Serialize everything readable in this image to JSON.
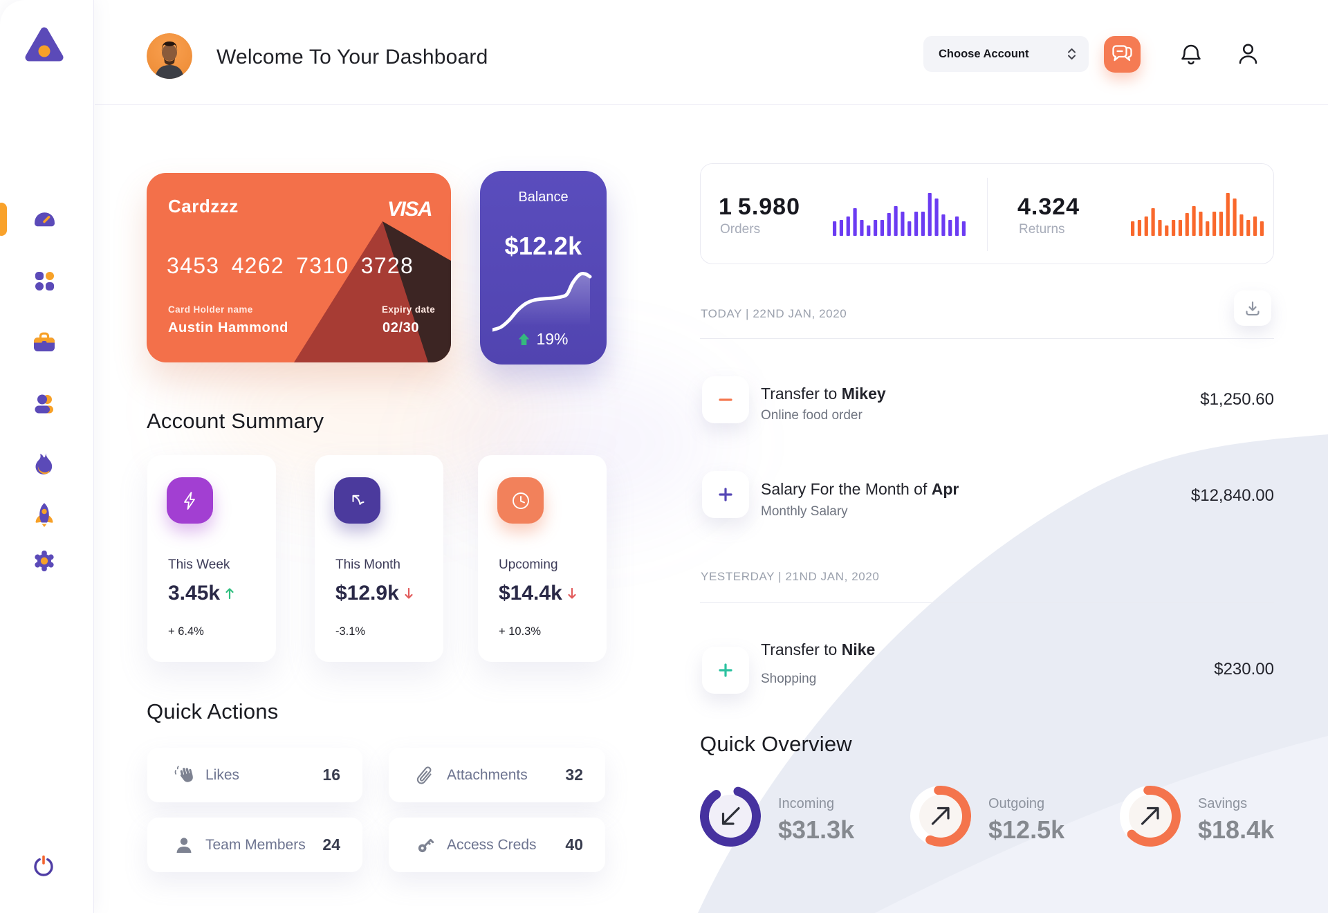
{
  "header": {
    "title": "Welcome To Your Dashboard",
    "account_select": {
      "value": "Choose Account"
    }
  },
  "sidebar": {
    "items": [
      {
        "id": "dashboard",
        "active": true
      },
      {
        "id": "apps",
        "active": false
      },
      {
        "id": "briefcase",
        "active": false
      },
      {
        "id": "profile",
        "active": false
      },
      {
        "id": "activity",
        "active": false
      },
      {
        "id": "launch",
        "active": false
      },
      {
        "id": "settings",
        "active": false
      }
    ]
  },
  "credit_card": {
    "name": "Cardzzz",
    "network": "VISA",
    "number": "3453 4262 7310 3728",
    "holder_label": "Card Holder name",
    "holder_name": "Austin Hammond",
    "expiry_label": "Expiry date",
    "expiry": "02/30"
  },
  "balance_card": {
    "label": "Balance",
    "amount": "$12.2k",
    "change": "19%"
  },
  "summary": {
    "title": "Account Summary",
    "cards": [
      {
        "label": "This Week",
        "value": "3.45k",
        "delta": "+ 6.4%",
        "trend": "up",
        "icon": "lightning-icon",
        "tile_color": "#a23fd2"
      },
      {
        "label": "This Month",
        "value": "$12.9k",
        "delta": "-3.1%",
        "trend": "down",
        "icon": "arrow-up-left-icon",
        "tile_color": "#4b3a9d"
      },
      {
        "label": "Upcoming",
        "value": "$14.4k",
        "delta": "+ 10.3%",
        "trend": "down",
        "icon": "clock-icon",
        "tile_color": "#f2815b"
      }
    ]
  },
  "quick_actions": {
    "title": "Quick Actions",
    "items": [
      {
        "label": "Likes",
        "count": "16",
        "icon": "clap-icon"
      },
      {
        "label": "Attachments",
        "count": "32",
        "icon": "paperclip-icon"
      },
      {
        "label": "Team Members",
        "count": "24",
        "icon": "member-icon"
      },
      {
        "label": "Access Creds",
        "count": "40",
        "icon": "key-icon"
      }
    ]
  },
  "stats": {
    "orders": {
      "value": "15.980",
      "label": "Orders"
    },
    "returns": {
      "value": "4.324",
      "label": "Returns"
    }
  },
  "transactions": {
    "groups": [
      {
        "date": "TODAY | 22ND JAN, 2020",
        "items": [
          {
            "title_prefix": "Transfer to ",
            "title_bold": "Mikey",
            "subtitle": "Online food order",
            "amount": "$1,250.60",
            "sign": "minus",
            "sign_color": "#f4774e"
          },
          {
            "title_prefix": "Salary For the Month of ",
            "title_bold": "Apr",
            "subtitle": "Monthly Salary",
            "amount": "$12,840.00",
            "sign": "plus",
            "sign_color": "#5546b5"
          }
        ]
      },
      {
        "date": "YESTERDAY | 21ND JAN, 2020",
        "items": [
          {
            "title_prefix": "Transfer to ",
            "title_bold": "Nike",
            "subtitle": "Shopping",
            "amount": "$230.00",
            "sign": "plus",
            "sign_color": "#2cc2a0"
          }
        ]
      }
    ]
  },
  "overview": {
    "title": "Quick Overview",
    "items": [
      {
        "label": "Incoming",
        "value": "$31.3k",
        "percent": 86,
        "start_deg": 287,
        "color": "#46329f",
        "inner": "#f1eff8",
        "direction": "down-left"
      },
      {
        "label": "Outgoing",
        "value": "$12.5k",
        "percent": 58,
        "start_deg": 265,
        "color": "#f4744c",
        "inner": "#f9f5f2",
        "direction": "up-right"
      },
      {
        "label": "Savings",
        "value": "$18.4k",
        "percent": 64,
        "start_deg": 265,
        "color": "#f4744c",
        "inner": "#f9f5f2",
        "direction": "up-right"
      }
    ]
  },
  "chart_data": [
    {
      "type": "bar",
      "name": "orders_mini",
      "title": "Orders mini bar chart",
      "values": [
        21,
        23,
        28,
        40,
        23,
        15,
        23,
        23,
        33,
        43,
        35,
        21,
        35,
        35,
        62,
        54,
        31,
        23,
        28,
        21
      ],
      "color": "#6b3bf2"
    },
    {
      "type": "bar",
      "name": "returns_mini",
      "title": "Returns mini bar chart",
      "values": [
        21,
        23,
        28,
        40,
        23,
        15,
        23,
        23,
        33,
        43,
        35,
        21,
        35,
        35,
        62,
        54,
        31,
        23,
        28,
        21
      ],
      "color": "#f9682c"
    },
    {
      "type": "line",
      "name": "balance_trend",
      "title": "Balance trend sparkline",
      "points": [
        [
          0,
          92
        ],
        [
          12,
          88
        ],
        [
          24,
          78
        ],
        [
          36,
          64
        ],
        [
          48,
          54
        ],
        [
          60,
          49
        ],
        [
          74,
          47
        ],
        [
          88,
          46
        ],
        [
          100,
          44
        ],
        [
          108,
          40
        ],
        [
          116,
          24
        ],
        [
          126,
          12
        ],
        [
          134,
          11
        ],
        [
          141,
          15
        ]
      ]
    },
    {
      "type": "donut",
      "name": "incoming",
      "percent": 86
    },
    {
      "type": "donut",
      "name": "outgoing",
      "percent": 58
    },
    {
      "type": "donut",
      "name": "savings",
      "percent": 64
    }
  ]
}
